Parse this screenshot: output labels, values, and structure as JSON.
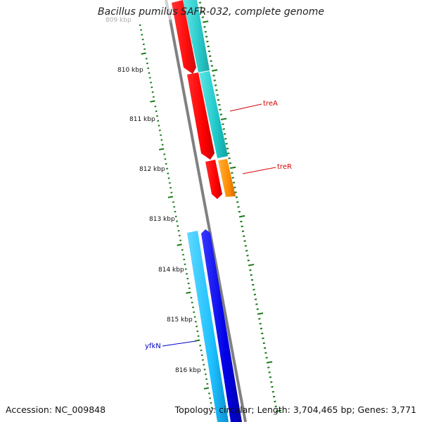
{
  "title": "Bacillus pumilus SAFR-032, complete genome",
  "footer": {
    "accession": "Accession: NC_009848",
    "summary": "Topology: circular; Length: 3,704,465 bp; Genes: 3,771"
  },
  "ruler": {
    "unit": "kbp",
    "labels": [
      "809 kbp",
      "810 kbp",
      "811 kbp",
      "812 kbp",
      "813 kbp",
      "814 kbp",
      "815 kbp",
      "816 kbp"
    ],
    "faded_first_label": true
  },
  "colors": {
    "backbone": "#808080",
    "tick": "#1a7a1a",
    "red": "#ff0000",
    "cyan": "#1ec8c8",
    "orange": "#ff8c00",
    "light_blue": "#1ec0ff",
    "dark_blue": "#0000e6",
    "label_red": "#d40000",
    "label_blue": "#0000c8"
  },
  "gene_labels": [
    {
      "text": "treA",
      "color": "label_red"
    },
    {
      "text": "treR",
      "color": "label_red"
    },
    {
      "text": "yfkN",
      "color": "label_blue"
    }
  ]
}
